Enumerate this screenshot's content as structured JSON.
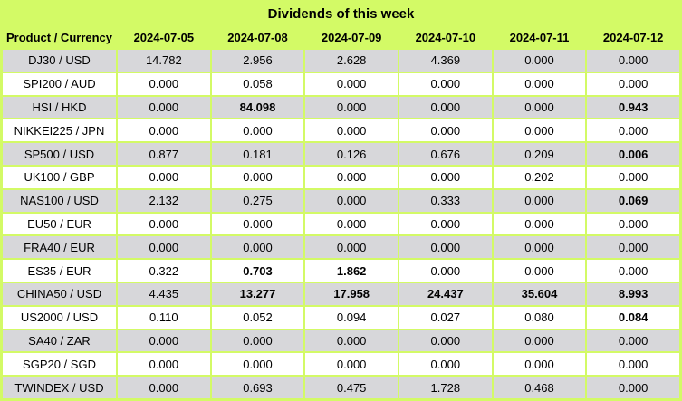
{
  "title": "Dividends of this week",
  "colors": {
    "background_green": "#d3fa66",
    "row_gray": "#d7d7da",
    "row_white": "#ffffff",
    "text": "#000000"
  },
  "chart_data": {
    "type": "table",
    "title": "Dividends of this week",
    "header": [
      "Product / Currency",
      "2024-07-05",
      "2024-07-08",
      "2024-07-09",
      "2024-07-10",
      "2024-07-11",
      "2024-07-12"
    ],
    "rows": [
      {
        "product": "DJ30 / USD",
        "values": [
          "14.782",
          "2.956",
          "2.628",
          "4.369",
          "0.000",
          "0.000"
        ],
        "bold": []
      },
      {
        "product": "SPI200 / AUD",
        "values": [
          "0.000",
          "0.058",
          "0.000",
          "0.000",
          "0.000",
          "0.000"
        ],
        "bold": []
      },
      {
        "product": "HSI / HKD",
        "values": [
          "0.000",
          "84.098",
          "0.000",
          "0.000",
          "0.000",
          "0.943"
        ],
        "bold": [
          1,
          5
        ]
      },
      {
        "product": "NIKKEI225 / JPN",
        "values": [
          "0.000",
          "0.000",
          "0.000",
          "0.000",
          "0.000",
          "0.000"
        ],
        "bold": []
      },
      {
        "product": "SP500 / USD",
        "values": [
          "0.877",
          "0.181",
          "0.126",
          "0.676",
          "0.209",
          "0.006"
        ],
        "bold": [
          5
        ]
      },
      {
        "product": "UK100 / GBP",
        "values": [
          "0.000",
          "0.000",
          "0.000",
          "0.000",
          "0.202",
          "0.000"
        ],
        "bold": []
      },
      {
        "product": "NAS100 / USD",
        "values": [
          "2.132",
          "0.275",
          "0.000",
          "0.333",
          "0.000",
          "0.069"
        ],
        "bold": [
          5
        ]
      },
      {
        "product": "EU50 / EUR",
        "values": [
          "0.000",
          "0.000",
          "0.000",
          "0.000",
          "0.000",
          "0.000"
        ],
        "bold": []
      },
      {
        "product": "FRA40 / EUR",
        "values": [
          "0.000",
          "0.000",
          "0.000",
          "0.000",
          "0.000",
          "0.000"
        ],
        "bold": []
      },
      {
        "product": "ES35 / EUR",
        "values": [
          "0.322",
          "0.703",
          "1.862",
          "0.000",
          "0.000",
          "0.000"
        ],
        "bold": [
          1,
          2
        ]
      },
      {
        "product": "CHINA50 / USD",
        "values": [
          "4.435",
          "13.277",
          "17.958",
          "24.437",
          "35.604",
          "8.993"
        ],
        "bold": [
          1,
          2,
          3,
          4,
          5
        ]
      },
      {
        "product": "US2000 / USD",
        "values": [
          "0.110",
          "0.052",
          "0.094",
          "0.027",
          "0.080",
          "0.084"
        ],
        "bold": [
          5
        ]
      },
      {
        "product": "SA40 / ZAR",
        "values": [
          "0.000",
          "0.000",
          "0.000",
          "0.000",
          "0.000",
          "0.000"
        ],
        "bold": []
      },
      {
        "product": "SGP20 / SGD",
        "values": [
          "0.000",
          "0.000",
          "0.000",
          "0.000",
          "0.000",
          "0.000"
        ],
        "bold": []
      },
      {
        "product": "TWINDEX / USD",
        "values": [
          "0.000",
          "0.693",
          "0.475",
          "1.728",
          "0.468",
          "0.000"
        ],
        "bold": []
      }
    ]
  }
}
